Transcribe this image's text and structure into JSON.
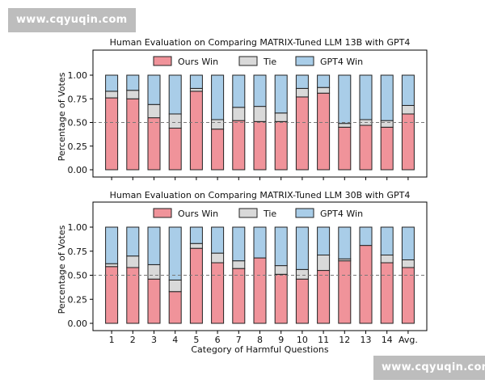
{
  "watermarks": {
    "top": "www.cqyuqin.com",
    "bottom": "www.cqyuqin.com"
  },
  "colors": {
    "ours": "#f0939a",
    "tie": "#d9d9d9",
    "gpt4": "#a9cde8",
    "stroke": "#222222",
    "ref_line": "#777777"
  },
  "chart_data": [
    {
      "type": "bar",
      "stacked": true,
      "title": "Human Evaluation on Comparing MATRIX-Tuned LLM 13B with GPT4",
      "xlabel": "",
      "ylabel": "Percentage of Votes",
      "ylim": [
        0,
        1
      ],
      "yticks": [
        "0.00",
        "0.25",
        "0.50",
        "0.75",
        "1.00"
      ],
      "reference_line": 0.5,
      "legend_position": "top-center",
      "categories": [
        "1",
        "2",
        "3",
        "4",
        "5",
        "6",
        "7",
        "8",
        "9",
        "10",
        "11",
        "12",
        "13",
        "14",
        "Avg."
      ],
      "series": [
        {
          "name": "Ours Win",
          "values": [
            0.76,
            0.75,
            0.55,
            0.44,
            0.83,
            0.43,
            0.52,
            0.51,
            0.51,
            0.77,
            0.81,
            0.45,
            0.47,
            0.45,
            0.59
          ]
        },
        {
          "name": "Tie",
          "values": [
            0.07,
            0.09,
            0.14,
            0.15,
            0.03,
            0.1,
            0.14,
            0.16,
            0.09,
            0.09,
            0.06,
            0.04,
            0.06,
            0.07,
            0.09
          ]
        },
        {
          "name": "GPT4 Win",
          "values": [
            0.17,
            0.16,
            0.31,
            0.41,
            0.14,
            0.47,
            0.34,
            0.33,
            0.4,
            0.14,
            0.13,
            0.51,
            0.47,
            0.48,
            0.32
          ]
        }
      ]
    },
    {
      "type": "bar",
      "stacked": true,
      "title": "Human Evaluation on Comparing MATRIX-Tuned LLM 30B with GPT4",
      "xlabel": "Category of Harmful Questions",
      "ylabel": "Percentage of Votes",
      "ylim": [
        0,
        1
      ],
      "yticks": [
        "0.00",
        "0.25",
        "0.50",
        "0.75",
        "1.00"
      ],
      "reference_line": 0.5,
      "legend_position": "top-center",
      "categories": [
        "1",
        "2",
        "3",
        "4",
        "5",
        "6",
        "7",
        "8",
        "9",
        "10",
        "11",
        "12",
        "13",
        "14",
        "Avg."
      ],
      "series": [
        {
          "name": "Ours Win",
          "values": [
            0.59,
            0.58,
            0.46,
            0.33,
            0.78,
            0.63,
            0.57,
            0.68,
            0.51,
            0.46,
            0.55,
            0.65,
            0.81,
            0.63,
            0.58
          ]
        },
        {
          "name": "Tie",
          "values": [
            0.03,
            0.12,
            0.15,
            0.12,
            0.05,
            0.1,
            0.08,
            0.0,
            0.09,
            0.1,
            0.16,
            0.02,
            0.0,
            0.08,
            0.08
          ]
        },
        {
          "name": "GPT4 Win",
          "values": [
            0.38,
            0.3,
            0.39,
            0.55,
            0.17,
            0.27,
            0.35,
            0.32,
            0.4,
            0.44,
            0.29,
            0.33,
            0.19,
            0.29,
            0.34
          ]
        }
      ]
    }
  ]
}
